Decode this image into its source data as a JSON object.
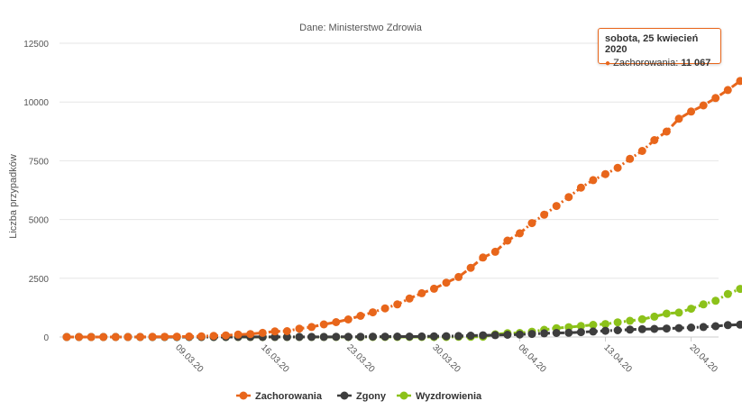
{
  "chart_data": {
    "type": "line",
    "subtitle": "Dane: Ministerstwo Zdrowia",
    "ylabel": "Liczba przypadków",
    "ylim": [
      0,
      12500
    ],
    "yticks": [
      "0",
      "2500",
      "5000",
      "7500",
      "10000",
      "12500"
    ],
    "xticks": [
      "09.03.20",
      "16.03.20",
      "23.03.20",
      "30.03.20",
      "06.04.20",
      "13.04.20",
      "20.04.20"
    ],
    "x": [
      "29.02.20",
      "01.03.20",
      "02.03.20",
      "03.03.20",
      "04.03.20",
      "05.03.20",
      "06.03.20",
      "07.03.20",
      "08.03.20",
      "09.03.20",
      "10.03.20",
      "11.03.20",
      "12.03.20",
      "13.03.20",
      "14.03.20",
      "15.03.20",
      "16.03.20",
      "17.03.20",
      "18.03.20",
      "19.03.20",
      "20.03.20",
      "21.03.20",
      "22.03.20",
      "23.03.20",
      "24.03.20",
      "25.03.20",
      "26.03.20",
      "27.03.20",
      "28.03.20",
      "29.03.20",
      "30.03.20",
      "31.03.20",
      "01.04.20",
      "02.04.20",
      "03.04.20",
      "04.04.20",
      "05.04.20",
      "06.04.20",
      "07.04.20",
      "08.04.20",
      "09.04.20",
      "10.04.20",
      "11.04.20",
      "12.04.20",
      "13.04.20",
      "14.04.20",
      "15.04.20",
      "16.04.20",
      "17.04.20",
      "18.04.20",
      "19.04.20",
      "20.04.20",
      "21.04.20",
      "22.04.20",
      "23.04.20",
      "24.04.20",
      "25.04.20"
    ],
    "series": [
      {
        "name": "Zachorowania",
        "color": "#e8661b",
        "values": [
          0,
          0,
          0,
          0,
          1,
          1,
          5,
          6,
          11,
          17,
          22,
          31,
          51,
          68,
          104,
          125,
          177,
          238,
          251,
          355,
          425,
          536,
          634,
          749,
          901,
          1051,
          1221,
          1389,
          1638,
          1862,
          2055,
          2311,
          2554,
          2946,
          3383,
          3627,
          4102,
          4413,
          4848,
          5205,
          5575,
          5955,
          6356,
          6674,
          6934,
          7202,
          7582,
          7918,
          8379,
          8742,
          9287,
          9593,
          9856,
          10169,
          10511,
          10892,
          11067
        ]
      },
      {
        "name": "Zgony",
        "color": "#3d3d3d",
        "values": [
          0,
          0,
          0,
          0,
          0,
          0,
          0,
          0,
          0,
          0,
          0,
          0,
          0,
          1,
          3,
          3,
          4,
          5,
          5,
          5,
          5,
          5,
          7,
          8,
          10,
          14,
          16,
          18,
          18,
          22,
          31,
          33,
          43,
          57,
          71,
          79,
          94,
          107,
          129,
          159,
          174,
          181,
          208,
          232,
          263,
          286,
          314,
          332,
          347,
          360,
          380,
          401,
          426,
          462,
          508,
          524,
          535
        ]
      },
      {
        "name": "Wyzdrowienia",
        "color": "#8cc21a",
        "values": [
          0,
          0,
          0,
          0,
          0,
          0,
          0,
          0,
          0,
          0,
          0,
          0,
          0,
          0,
          0,
          0,
          0,
          0,
          0,
          0,
          0,
          0,
          0,
          0,
          0,
          0,
          0,
          0,
          0,
          0,
          0,
          0,
          7,
          7,
          12,
          116,
          162,
          173,
          225,
          307,
          375,
          417,
          468,
          519,
          551,
          626,
          691,
          755,
          868,
          996,
          1040,
          1204,
          1388,
          1542,
          1828,
          2046,
          2164
        ]
      }
    ],
    "tooltip": {
      "title": "sobota, 25 kwiecień 2020",
      "series": "Zachorowania",
      "value": "11 067",
      "index": 56
    },
    "grid": true,
    "legend": "bottom-center"
  }
}
